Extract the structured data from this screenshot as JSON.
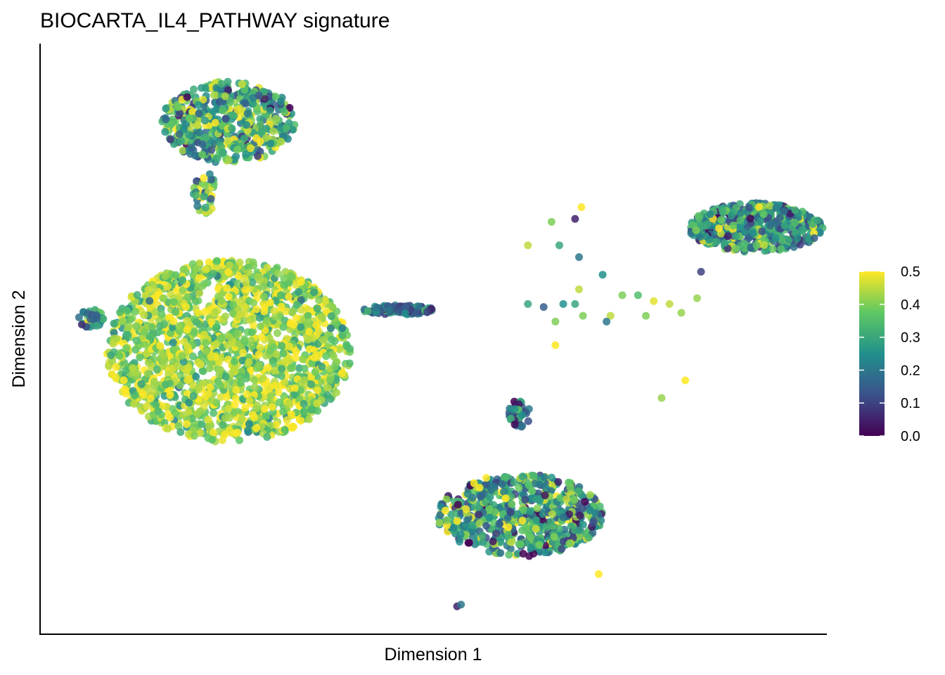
{
  "chart_data": {
    "type": "scatter",
    "title": "BIOCARTA_IL4_PATHWAY signature",
    "xlabel": "Dimension 1",
    "ylabel": "Dimension 2",
    "x_ticks_shown": false,
    "y_ticks_shown": false,
    "grid": false,
    "xlim": [
      0,
      100
    ],
    "ylim": [
      0,
      100
    ],
    "color_scale": {
      "name": "viridis",
      "range": [
        0.0,
        0.5
      ],
      "ticks": [
        "0.0",
        "0.1",
        "0.2",
        "0.3",
        "0.4",
        "0.5"
      ],
      "colors": [
        "#440154",
        "#3b528b",
        "#21908c",
        "#5dc863",
        "#fde725"
      ]
    },
    "legend_position": "right",
    "clusters": [
      {
        "id": "top-left",
        "center": [
          24,
          87
        ],
        "spread": [
          8.5,
          7.0
        ],
        "n": 520,
        "mean_score": 0.3,
        "score_sd": 0.12
      },
      {
        "id": "top-left-tail",
        "center": [
          21,
          75
        ],
        "spread": [
          1.5,
          3.5
        ],
        "n": 40,
        "mean_score": 0.35,
        "score_sd": 0.12
      },
      {
        "id": "large-left",
        "center": [
          24,
          48
        ],
        "spread": [
          15.5,
          15.5
        ],
        "n": 1700,
        "mean_score": 0.42,
        "score_sd": 0.08
      },
      {
        "id": "small-left",
        "center": [
          6.5,
          53.5
        ],
        "spread": [
          1.7,
          1.6
        ],
        "n": 35,
        "mean_score": 0.25,
        "score_sd": 0.1
      },
      {
        "id": "horizontal-strip",
        "center": [
          45.5,
          55
        ],
        "spread": [
          4.5,
          0.8
        ],
        "n": 110,
        "mean_score": 0.17,
        "score_sd": 0.08
      },
      {
        "id": "right-top",
        "center": [
          91,
          69
        ],
        "spread": [
          8.5,
          4.2
        ],
        "n": 520,
        "mean_score": 0.25,
        "score_sd": 0.12
      },
      {
        "id": "small-middle",
        "center": [
          61,
          37.5
        ],
        "spread": [
          1.4,
          2.5
        ],
        "n": 40,
        "mean_score": 0.18,
        "score_sd": 0.1
      },
      {
        "id": "bottom-center",
        "center": [
          61,
          20
        ],
        "spread": [
          10.5,
          7.0
        ],
        "n": 650,
        "mean_score": 0.27,
        "score_sd": 0.13
      }
    ],
    "outliers": [
      {
        "x": 68.8,
        "y": 72.5,
        "v": 0.5
      },
      {
        "x": 68.0,
        "y": 70.5,
        "v": 0.05
      },
      {
        "x": 65.0,
        "y": 70.0,
        "v": 0.4
      },
      {
        "x": 62.0,
        "y": 66.0,
        "v": 0.45
      },
      {
        "x": 66.0,
        "y": 66.0,
        "v": 0.3
      },
      {
        "x": 68.5,
        "y": 64.0,
        "v": 0.2
      },
      {
        "x": 71.5,
        "y": 61.0,
        "v": 0.25
      },
      {
        "x": 68.5,
        "y": 58.5,
        "v": 0.45
      },
      {
        "x": 68.0,
        "y": 56.0,
        "v": 0.3
      },
      {
        "x": 69.0,
        "y": 54.0,
        "v": 0.4
      },
      {
        "x": 66.5,
        "y": 56.0,
        "v": 0.25
      },
      {
        "x": 62.0,
        "y": 56.0,
        "v": 0.3
      },
      {
        "x": 64.0,
        "y": 55.5,
        "v": 0.15
      },
      {
        "x": 65.5,
        "y": 53.0,
        "v": 0.4
      },
      {
        "x": 72.5,
        "y": 54.0,
        "v": 0.45
      },
      {
        "x": 74.0,
        "y": 57.5,
        "v": 0.4
      },
      {
        "x": 76.0,
        "y": 57.5,
        "v": 0.35
      },
      {
        "x": 78.0,
        "y": 56.5,
        "v": 0.48
      },
      {
        "x": 80.0,
        "y": 56.0,
        "v": 0.45
      },
      {
        "x": 81.5,
        "y": 54.5,
        "v": 0.42
      },
      {
        "x": 77.0,
        "y": 54.0,
        "v": 0.4
      },
      {
        "x": 72.0,
        "y": 53.0,
        "v": 0.2
      },
      {
        "x": 83.5,
        "y": 57.0,
        "v": 0.42
      },
      {
        "x": 84.0,
        "y": 61.5,
        "v": 0.1
      },
      {
        "x": 65.5,
        "y": 49.0,
        "v": 0.5
      },
      {
        "x": 82.0,
        "y": 43.0,
        "v": 0.5
      },
      {
        "x": 79.0,
        "y": 40.0,
        "v": 0.42
      },
      {
        "x": 71.0,
        "y": 10.0,
        "v": 0.5
      },
      {
        "x": 53.0,
        "y": 4.5,
        "v": 0.05
      },
      {
        "x": 53.5,
        "y": 4.8,
        "v": 0.2
      }
    ]
  }
}
